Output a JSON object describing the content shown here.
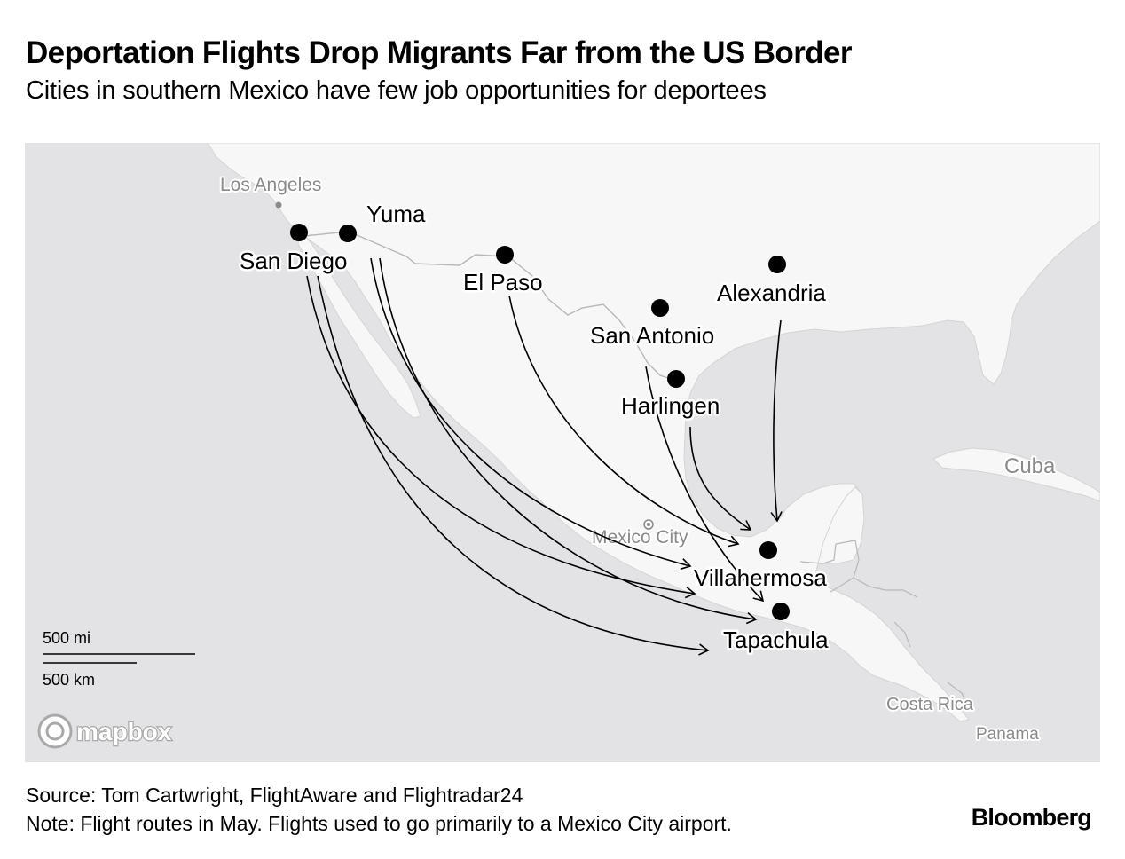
{
  "header": {
    "title": "Deportation Flights Drop Migrants Far from the US Border",
    "subtitle": "Cities in southern Mexico have few job opportunities for deportees"
  },
  "map": {
    "reference_places": {
      "los_angeles": "Los Angeles",
      "mexico_city": "Mexico City",
      "cuba": "Cuba",
      "costa_rica": "Costa Rica",
      "panama": "Panama"
    },
    "origins": {
      "san_diego": "San Diego",
      "yuma": "Yuma",
      "el_paso": "El Paso",
      "san_antonio": "San Antonio",
      "harlingen": "Harlingen",
      "alexandria": "Alexandria"
    },
    "destinations": {
      "villahermosa": "Villahermosa",
      "tapachula": "Tapachula"
    },
    "routes": [
      {
        "from": "San Diego",
        "to": "Villahermosa"
      },
      {
        "from": "San Diego",
        "to": "Tapachula"
      },
      {
        "from": "Yuma",
        "to": "Villahermosa"
      },
      {
        "from": "Yuma",
        "to": "Tapachula"
      },
      {
        "from": "El Paso",
        "to": "Villahermosa"
      },
      {
        "from": "San Antonio",
        "to": "Tapachula"
      },
      {
        "from": "Harlingen",
        "to": "Villahermosa"
      },
      {
        "from": "Alexandria",
        "to": "Villahermosa"
      }
    ],
    "scale": {
      "miles_label": "500 mi",
      "km_label": "500 km"
    },
    "attribution_logo": "mapbox",
    "colors": {
      "ocean": "#e3e3e5",
      "land": "#f7f7f7",
      "border": "#b8b8b8",
      "route": "#000000",
      "place_label": "#8a8a8a"
    }
  },
  "footer": {
    "source": "Source: Tom Cartwright, FlightAware and Flightradar24",
    "note": "Note: Flight routes in May. Flights used to go primarily to a Mexico City airport."
  },
  "brand": "Bloomberg"
}
